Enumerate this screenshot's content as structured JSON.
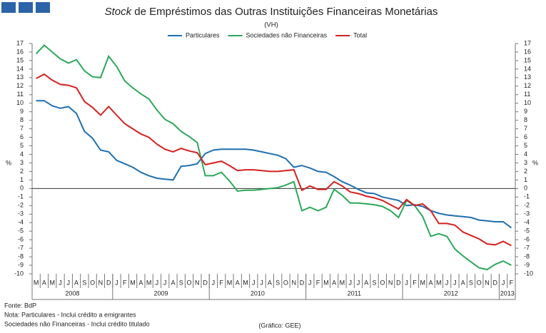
{
  "chart_data": {
    "type": "line",
    "title_italic": "Stock",
    "title": "de Empréstimos das Outras Instituições Financeiras Monetárias",
    "subtitle": "(VH)",
    "y_axis_label": "%",
    "y2_axis_label": "%",
    "categories": [
      "M",
      "A",
      "M",
      "J",
      "J",
      "A",
      "S",
      "O",
      "N",
      "D",
      "J",
      "F",
      "M",
      "A",
      "M",
      "J",
      "J",
      "A",
      "S",
      "O",
      "N",
      "D",
      "J",
      "F",
      "M",
      "A",
      "M",
      "J",
      "J",
      "A",
      "S",
      "O",
      "N",
      "D",
      "J",
      "F",
      "M",
      "A",
      "M",
      "J",
      "J",
      "A",
      "S",
      "O",
      "N",
      "D",
      "J",
      "F",
      "M",
      "A",
      "M",
      "J",
      "J",
      "A",
      "S",
      "O",
      "N",
      "D",
      "J",
      "F"
    ],
    "years": [
      "2008",
      "2009",
      "2010",
      "2011",
      "2012",
      "2013"
    ],
    "series": [
      {
        "name": "Particulares",
        "color": "#1f6fb0",
        "values": [
          10.3,
          10.3,
          9.7,
          9.4,
          9.6,
          8.8,
          6.7,
          5.9,
          4.5,
          4.3,
          3.3,
          2.9,
          2.5,
          1.9,
          1.5,
          1.2,
          1.1,
          1.0,
          2.6,
          2.7,
          2.9,
          4.1,
          4.5,
          4.6,
          4.6,
          4.6,
          4.6,
          4.5,
          4.3,
          4.1,
          3.9,
          3.5,
          2.5,
          2.7,
          2.4,
          2.0,
          1.9,
          1.4,
          0.8,
          0.4,
          -0.1,
          -0.5,
          -0.6,
          -1.0,
          -1.2,
          -1.4,
          -2.0,
          -1.9,
          -2.1,
          -2.6,
          -2.9,
          -3.1,
          -3.2,
          -3.3,
          -3.4,
          -3.7,
          -3.8,
          -3.9,
          -3.9,
          -4.6
        ]
      },
      {
        "name": "Sociedades não Financeiras",
        "color": "#2ca85a",
        "values": [
          15.8,
          16.8,
          16.0,
          15.2,
          14.7,
          15.1,
          13.8,
          13.1,
          13.0,
          15.5,
          14.3,
          12.6,
          11.8,
          11.1,
          10.5,
          9.2,
          8.1,
          7.6,
          6.7,
          6.1,
          5.4,
          1.5,
          1.5,
          1.9,
          0.9,
          -0.3,
          -0.2,
          -0.2,
          -0.1,
          0.0,
          0.1,
          0.4,
          0.8,
          -2.6,
          -2.2,
          -2.6,
          -2.2,
          -0.1,
          -0.8,
          -1.7,
          -1.7,
          -1.8,
          -1.9,
          -2.1,
          -2.6,
          -3.4,
          -1.4,
          -2.0,
          -3.3,
          -5.6,
          -5.3,
          -5.6,
          -7.1,
          -7.9,
          -8.6,
          -9.3,
          -9.5,
          -8.9,
          -8.5,
          -9.0
        ]
      },
      {
        "name": "Total",
        "color": "#d42020",
        "values": [
          12.9,
          13.4,
          12.7,
          12.2,
          12.1,
          11.8,
          10.2,
          9.5,
          8.6,
          9.6,
          8.6,
          7.6,
          7.0,
          6.4,
          6.0,
          5.2,
          4.6,
          4.3,
          4.7,
          4.4,
          4.2,
          2.8,
          3.0,
          3.2,
          2.7,
          2.1,
          2.2,
          2.2,
          2.1,
          2.0,
          2.0,
          2.1,
          2.2,
          -0.2,
          0.3,
          -0.1,
          -0.1,
          0.8,
          0.3,
          -0.4,
          -0.6,
          -0.9,
          -1.1,
          -1.4,
          -1.9,
          -2.4,
          -1.3,
          -2.0,
          -1.8,
          -2.6,
          -4.1,
          -4.1,
          -4.3,
          -5.1,
          -5.5,
          -5.9,
          -6.5,
          -6.6,
          -6.2,
          -6.7
        ]
      }
    ],
    "ylim": [
      -10,
      17
    ],
    "yticks": [
      -10,
      -9,
      -8,
      -7,
      -6,
      -5,
      -4,
      -3,
      -2,
      -1,
      0,
      1,
      2,
      3,
      4,
      5,
      6,
      7,
      8,
      9,
      10,
      11,
      12,
      13,
      14,
      15,
      16,
      17
    ],
    "legend": "top",
    "grid": false,
    "notes": [
      "Fonte: BdP",
      "Nota: Particulares - Inclui crédito a emigrantes",
      "Sociedades não Financeiras - Inclui crédito titulado"
    ],
    "credit": "(Gráfico: GEE)"
  }
}
